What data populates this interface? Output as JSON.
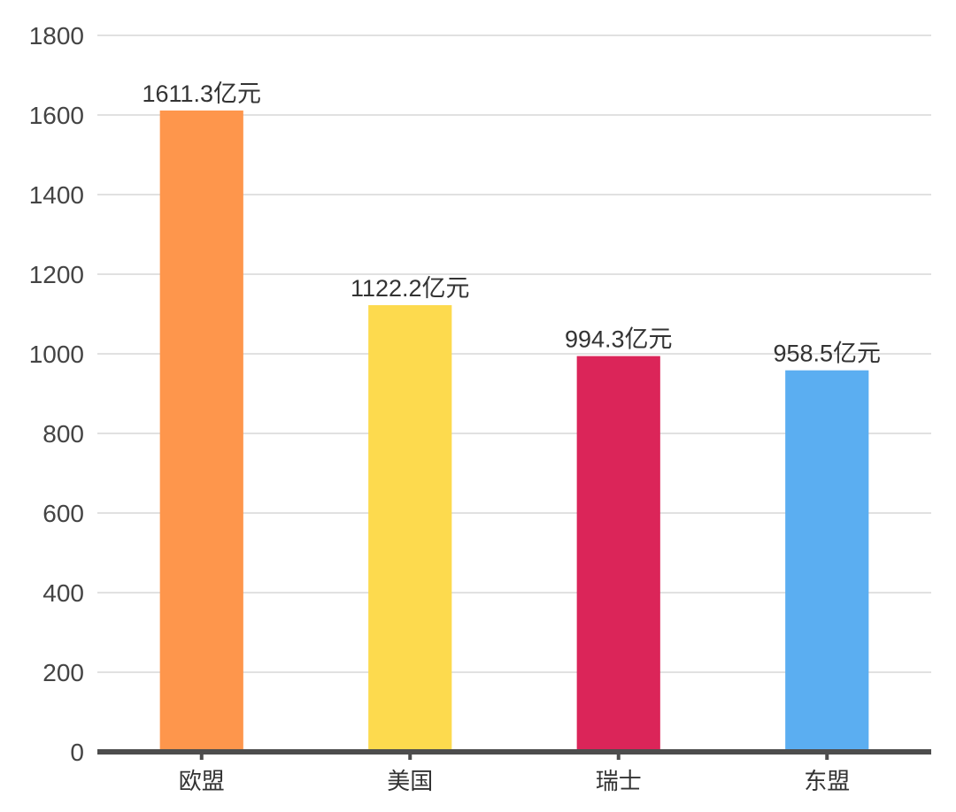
{
  "chart_data": {
    "type": "bar",
    "categories": [
      "欧盟",
      "美国",
      "瑞士",
      "东盟"
    ],
    "values": [
      1611.3,
      1122.2,
      994.3,
      958.5
    ],
    "data_labels": [
      "1611.3亿元",
      "1122.2亿元",
      "994.3亿元",
      "958.5亿元"
    ],
    "colors": [
      "#FE964C",
      "#FDDA4E",
      "#DB2559",
      "#5BAEF1"
    ],
    "ylim": [
      0,
      1800
    ],
    "yticks": [
      0,
      200,
      400,
      600,
      800,
      1000,
      1200,
      1400,
      1600,
      1800
    ],
    "grid": true,
    "legend": "none"
  }
}
